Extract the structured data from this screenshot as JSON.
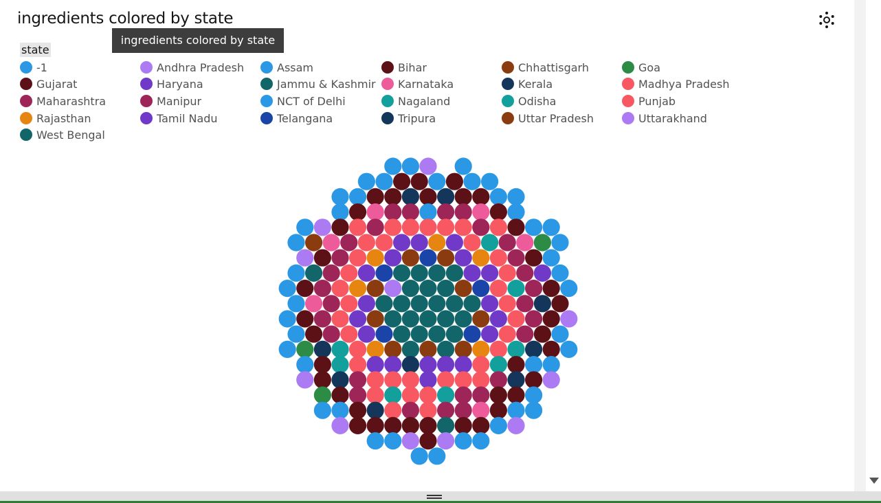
{
  "title": "ingredients colored by state",
  "tooltip": "ingredients colored by state",
  "settings_icon": "settings-icon",
  "legend": {
    "title": "state",
    "items": [
      {
        "label": "-1",
        "color": "#1192e8"
      },
      {
        "label": "Andhra Pradesh",
        "color": "#a56eff"
      },
      {
        "label": "Assam",
        "color": "#1192e8"
      },
      {
        "label": "Bihar",
        "color": "#570408"
      },
      {
        "label": "Chhattisgarh",
        "color": "#8a3800"
      },
      {
        "label": "Goa",
        "color": "#198038"
      },
      {
        "label": "Gujarat",
        "color": "#570408"
      },
      {
        "label": "Haryana",
        "color": "#6929c4"
      },
      {
        "label": "Jammu & Kashmir",
        "color": "#005d5d"
      },
      {
        "label": "Karnataka",
        "color": "#ee5396"
      },
      {
        "label": "Kerala",
        "color": "#012749"
      },
      {
        "label": "Madhya Pradesh",
        "color": "#fa4d56"
      },
      {
        "label": "Maharashtra",
        "color": "#9f1853"
      },
      {
        "label": "Manipur",
        "color": "#9f1853"
      },
      {
        "label": "NCT of Delhi",
        "color": "#1192e8"
      },
      {
        "label": "Nagaland",
        "color": "#009d9a"
      },
      {
        "label": "Odisha",
        "color": "#009d9a"
      },
      {
        "label": "Punjab",
        "color": "#fa4d56"
      },
      {
        "label": "Rajasthan",
        "color": "#e8800b"
      },
      {
        "label": "Tamil Nadu",
        "color": "#6929c4"
      },
      {
        "label": "Telangana",
        "color": "#002d9c"
      },
      {
        "label": "Tripura",
        "color": "#012749"
      },
      {
        "label": "Uttar Pradesh",
        "color": "#8a3800"
      },
      {
        "label": "Uttarakhand",
        "color": "#a56eff"
      },
      {
        "label": "West Bengal",
        "color": "#005d5d"
      }
    ]
  },
  "chart_data": {
    "type": "bubble-pack",
    "title": "ingredients colored by state",
    "color_field": "state",
    "legend_placement": "top",
    "palette": {
      "-1": "#2a98e4",
      "Andhra Pradesh": "#ac7af2",
      "Assam": "#2a98e4",
      "Bihar": "#5c1117",
      "Chhattisgarh": "#8a3c10",
      "Goa": "#2c8b44",
      "Gujarat": "#5c1117",
      "Haryana": "#7039c8",
      "Jammu & Kashmir": "#12666a",
      "Karnataka": "#ee5b9b",
      "Kerala": "#13365a",
      "Madhya Pradesh": "#f85862",
      "Maharashtra": "#9e2558",
      "Manipur": "#9e2558",
      "NCT of Delhi": "#2a98e4",
      "Nagaland": "#13a09c",
      "Odisha": "#13a09c",
      "Punjab": "#f85862",
      "Rajasthan": "#e6850f",
      "Tamil Nadu": "#7039c8",
      "Telangana": "#1a44a8",
      "Tripura": "#13365a",
      "Uttar Pradesh": "#8a3c10",
      "Uttarakhand": "#ac7af2",
      "West Bengal": "#12666a"
    },
    "rows": [
      [
        "-1",
        "-1",
        "Andhra Pradesh",
        null,
        "-1"
      ],
      [
        "-1",
        "-1",
        "Bihar",
        "Bihar",
        "-1",
        "Bihar",
        "-1",
        "-1"
      ],
      [
        "-1",
        "-1",
        "Bihar",
        "Bihar",
        "Kerala",
        "Bihar",
        "Kerala",
        "Bihar",
        "Bihar",
        "-1",
        "-1"
      ],
      [
        "-1",
        "Bihar",
        "Karnataka",
        "Maharashtra",
        "Maharashtra",
        "-1",
        "Maharashtra",
        "Maharashtra",
        "Karnataka",
        "Bihar",
        "-1"
      ],
      [
        "-1",
        "Andhra Pradesh",
        "Bihar",
        "Punjab",
        "Maharashtra",
        "Punjab",
        "Punjab",
        "Punjab",
        "Punjab",
        "Punjab",
        "Maharashtra",
        "Punjab",
        "Bihar",
        "-1",
        "-1"
      ],
      [
        "-1",
        "Chhattisgarh",
        "Karnataka",
        "Maharashtra",
        "Punjab",
        "Punjab",
        "Haryana",
        "Haryana",
        "Rajasthan",
        "Haryana",
        "Punjab",
        "Nagaland",
        "Maharashtra",
        "Karnataka",
        "Goa",
        "-1"
      ],
      [
        "Andhra Pradesh",
        "Bihar",
        "Maharashtra",
        "Punjab",
        "Rajasthan",
        "Haryana",
        "Chhattisgarh",
        "Telangana",
        "Chhattisgarh",
        "Haryana",
        "Rajasthan",
        "Punjab",
        "Maharashtra",
        "Bihar",
        "-1"
      ],
      [
        "-1",
        "West Bengal",
        "Maharashtra",
        "Punjab",
        "Haryana",
        "Telangana",
        "West Bengal",
        "West Bengal",
        "West Bengal",
        "West Bengal",
        "Haryana",
        "Haryana",
        "Punjab",
        "Maharashtra",
        "Haryana",
        "-1"
      ],
      [
        "-1",
        "Bihar",
        "Maharashtra",
        "Punjab",
        "Rajasthan",
        "Chhattisgarh",
        "Andhra Pradesh",
        "West Bengal",
        "West Bengal",
        "West Bengal",
        "Chhattisgarh",
        "Telangana",
        "Punjab",
        "Nagaland",
        "Maharashtra",
        "Bihar",
        "-1"
      ],
      [
        "-1",
        "Karnataka",
        "Maharashtra",
        "Punjab",
        "Haryana",
        "West Bengal",
        "West Bengal",
        "West Bengal",
        "West Bengal",
        "West Bengal",
        "West Bengal",
        "Haryana",
        "Punjab",
        "Maharashtra",
        "Kerala",
        "Bihar"
      ],
      [
        "-1",
        "Bihar",
        "Maharashtra",
        "Punjab",
        "Haryana",
        "Chhattisgarh",
        "West Bengal",
        "West Bengal",
        "West Bengal",
        "West Bengal",
        "West Bengal",
        "Chhattisgarh",
        "Haryana",
        "Punjab",
        "Maharashtra",
        "Bihar",
        "Andhra Pradesh"
      ],
      [
        "-1",
        "Bihar",
        "Maharashtra",
        "Punjab",
        "Haryana",
        "Telangana",
        "West Bengal",
        "West Bengal",
        "West Bengal",
        "West Bengal",
        "Telangana",
        "Haryana",
        "Punjab",
        "Maharashtra",
        "Bihar",
        "-1"
      ],
      [
        "-1",
        "Goa",
        "Kerala",
        "Nagaland",
        "Punjab",
        "Rajasthan",
        "Chhattisgarh",
        "West Bengal",
        "Chhattisgarh",
        "West Bengal",
        "Chhattisgarh",
        "Rajasthan",
        "Punjab",
        "Nagaland",
        "Kerala",
        "Bihar",
        "-1"
      ],
      [
        "-1",
        "Bihar",
        "Nagaland",
        "Punjab",
        "Haryana",
        "Haryana",
        "Kerala",
        "Haryana",
        "Haryana",
        "Haryana",
        "Punjab",
        "Nagaland",
        "Bihar",
        "-1",
        "-1"
      ],
      [
        "Andhra Pradesh",
        "Bihar",
        "Kerala",
        "Maharashtra",
        "Punjab",
        "Punjab",
        "Punjab",
        "Haryana",
        "Punjab",
        "Punjab",
        "Punjab",
        "Maharashtra",
        "Kerala",
        "Bihar",
        "Andhra Pradesh"
      ],
      [
        "Goa",
        "Bihar",
        "Maharashtra",
        "Punjab",
        "Nagaland",
        "Punjab",
        "Punjab",
        "Nagaland",
        "Maharashtra",
        "Maharashtra",
        "Bihar",
        "Bihar",
        "-1"
      ],
      [
        "-1",
        "-1",
        "Bihar",
        "Kerala",
        "Punjab",
        "Maharashtra",
        "Punjab",
        "Maharashtra",
        "Maharashtra",
        "Karnataka",
        "Bihar",
        "-1",
        "-1"
      ],
      [
        "Andhra Pradesh",
        "Bihar",
        "Bihar",
        "Bihar",
        "Bihar",
        "Bihar",
        "West Bengal",
        "Bihar",
        "Bihar",
        "-1",
        "Andhra Pradesh"
      ],
      [
        "-1",
        "-1",
        "Andhra Pradesh",
        "Bihar",
        "Andhra Pradesh",
        "-1",
        "-1"
      ],
      [
        "-1",
        "-1"
      ]
    ]
  }
}
